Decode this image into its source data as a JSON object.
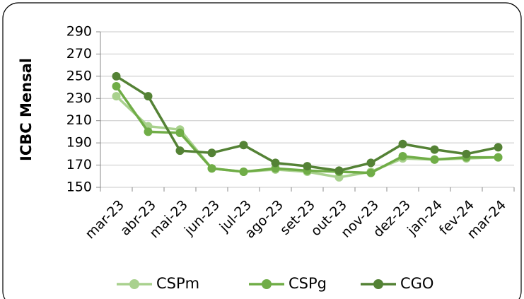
{
  "chart_data": {
    "type": "line",
    "y_label": "ICBC Mensal",
    "categories": [
      "mar-23",
      "abr-23",
      "mai-23",
      "jun-23",
      "jul-23",
      "ago-23",
      "set-23",
      "out-23",
      "nov-23",
      "dez-23",
      "jan-24",
      "fev-24",
      "mar-24"
    ],
    "series": [
      {
        "name": "CSPm",
        "color": "#a9d18e",
        "values": [
          232,
          205,
          202,
          167,
          164,
          166,
          164,
          159,
          164,
          176,
          175,
          176,
          177
        ]
      },
      {
        "name": "CSPg",
        "color": "#70ad47",
        "values": [
          241,
          200,
          199,
          167,
          164,
          167,
          165,
          164,
          163,
          178,
          175,
          177,
          177
        ]
      },
      {
        "name": "CGO",
        "color": "#548235",
        "values": [
          250,
          232,
          183,
          181,
          188,
          172,
          169,
          165,
          172,
          189,
          184,
          180,
          186
        ]
      }
    ],
    "ylim": [
      150,
      290
    ],
    "yticks": [
      150,
      170,
      190,
      210,
      230,
      250,
      270,
      290
    ],
    "grid": true
  }
}
